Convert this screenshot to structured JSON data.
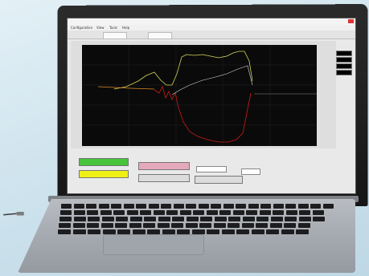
{
  "app": {
    "menu": [
      "Configuration",
      "View",
      "Tools",
      "Help"
    ],
    "tabs": [
      "",
      ""
    ],
    "y_ticks": [
      "",
      "",
      "",
      "",
      "",
      "",
      "",
      "",
      ""
    ],
    "right_panel": {
      "labels": [
        "",
        "",
        "",
        ""
      ]
    },
    "buttons": {
      "green": "",
      "yellow": "",
      "pink": "",
      "gray1": "",
      "gray2": ""
    },
    "fields": {
      "label1": "",
      "label2": ""
    }
  },
  "colors": {
    "scope_bg": "#0a0a0a",
    "trace_yellow": "#d6d65a",
    "trace_red": "#d21818",
    "trace_white": "#d8d8d8",
    "trace_orange": "#e08a2a",
    "button_green": "#47c43b",
    "button_yellow": "#f0f016",
    "button_pink": "#e5a9bc"
  }
}
